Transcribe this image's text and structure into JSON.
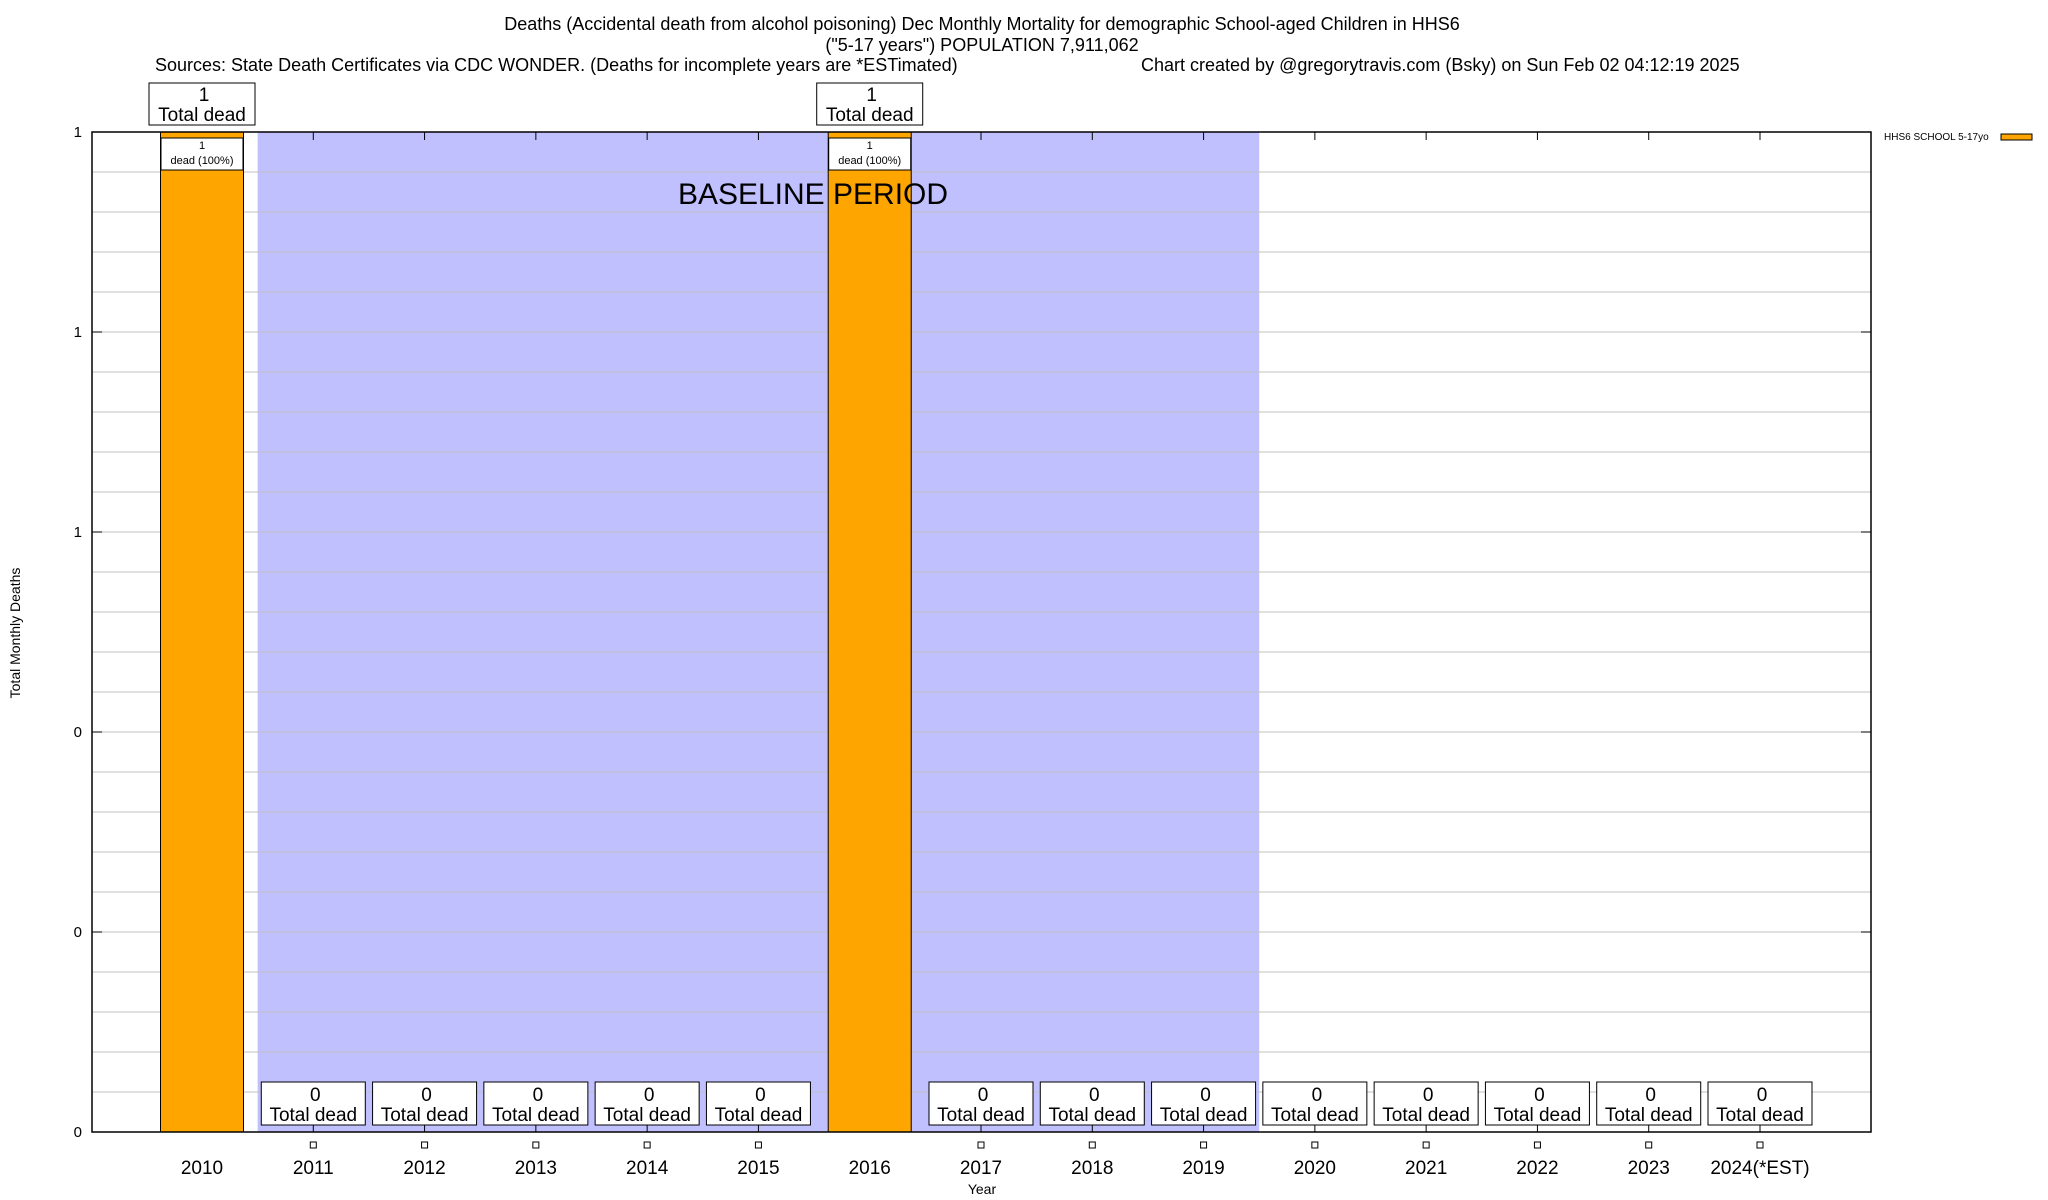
{
  "chart_data": {
    "type": "bar",
    "title": "Deaths (Accidental death from alcohol poisoning) Dec Monthly Mortality for demographic School-aged Children in HHS6",
    "subtitle": "(\"5-17 years\") POPULATION 7,911,062",
    "sources": "Sources: State Death Certificates via CDC WONDER. (Deaths for incomplete years are *ESTimated)",
    "credit": "Chart created by @gregorytravis.com (Bsky) on Sun Feb 02 04:12:19 2025",
    "xlabel": "Year",
    "ylabel": "Total Monthly Deaths",
    "ylim": [
      0,
      1
    ],
    "yticks": [
      0,
      0.2,
      0.4,
      0.6,
      0.8,
      1
    ],
    "ytick_labels": [
      "0",
      "0",
      "0",
      "1",
      "1",
      "1"
    ],
    "grid": true,
    "legend_position": "outside-top-right",
    "categories": [
      "2010",
      "2011",
      "2012",
      "2013",
      "2014",
      "2015",
      "2016",
      "2017",
      "2018",
      "2019",
      "2020",
      "2021",
      "2022",
      "2023",
      "2024(*EST)"
    ],
    "series": [
      {
        "name": "HHS6 SCHOOL 5-17yo",
        "color": "#ffa500",
        "values": [
          1,
          0,
          0,
          0,
          0,
          0,
          1,
          0,
          0,
          0,
          0,
          0,
          0,
          0,
          0
        ]
      }
    ],
    "total_label": "Total dead",
    "bar_inner_labels": {
      "2010": [
        "1",
        "dead (100%)"
      ],
      "2016": [
        "1",
        "dead (100%)"
      ]
    },
    "annotation": {
      "text": "BASELINE PERIOD",
      "from": "2011",
      "to": "2019",
      "color": "#c0c0ff"
    }
  }
}
